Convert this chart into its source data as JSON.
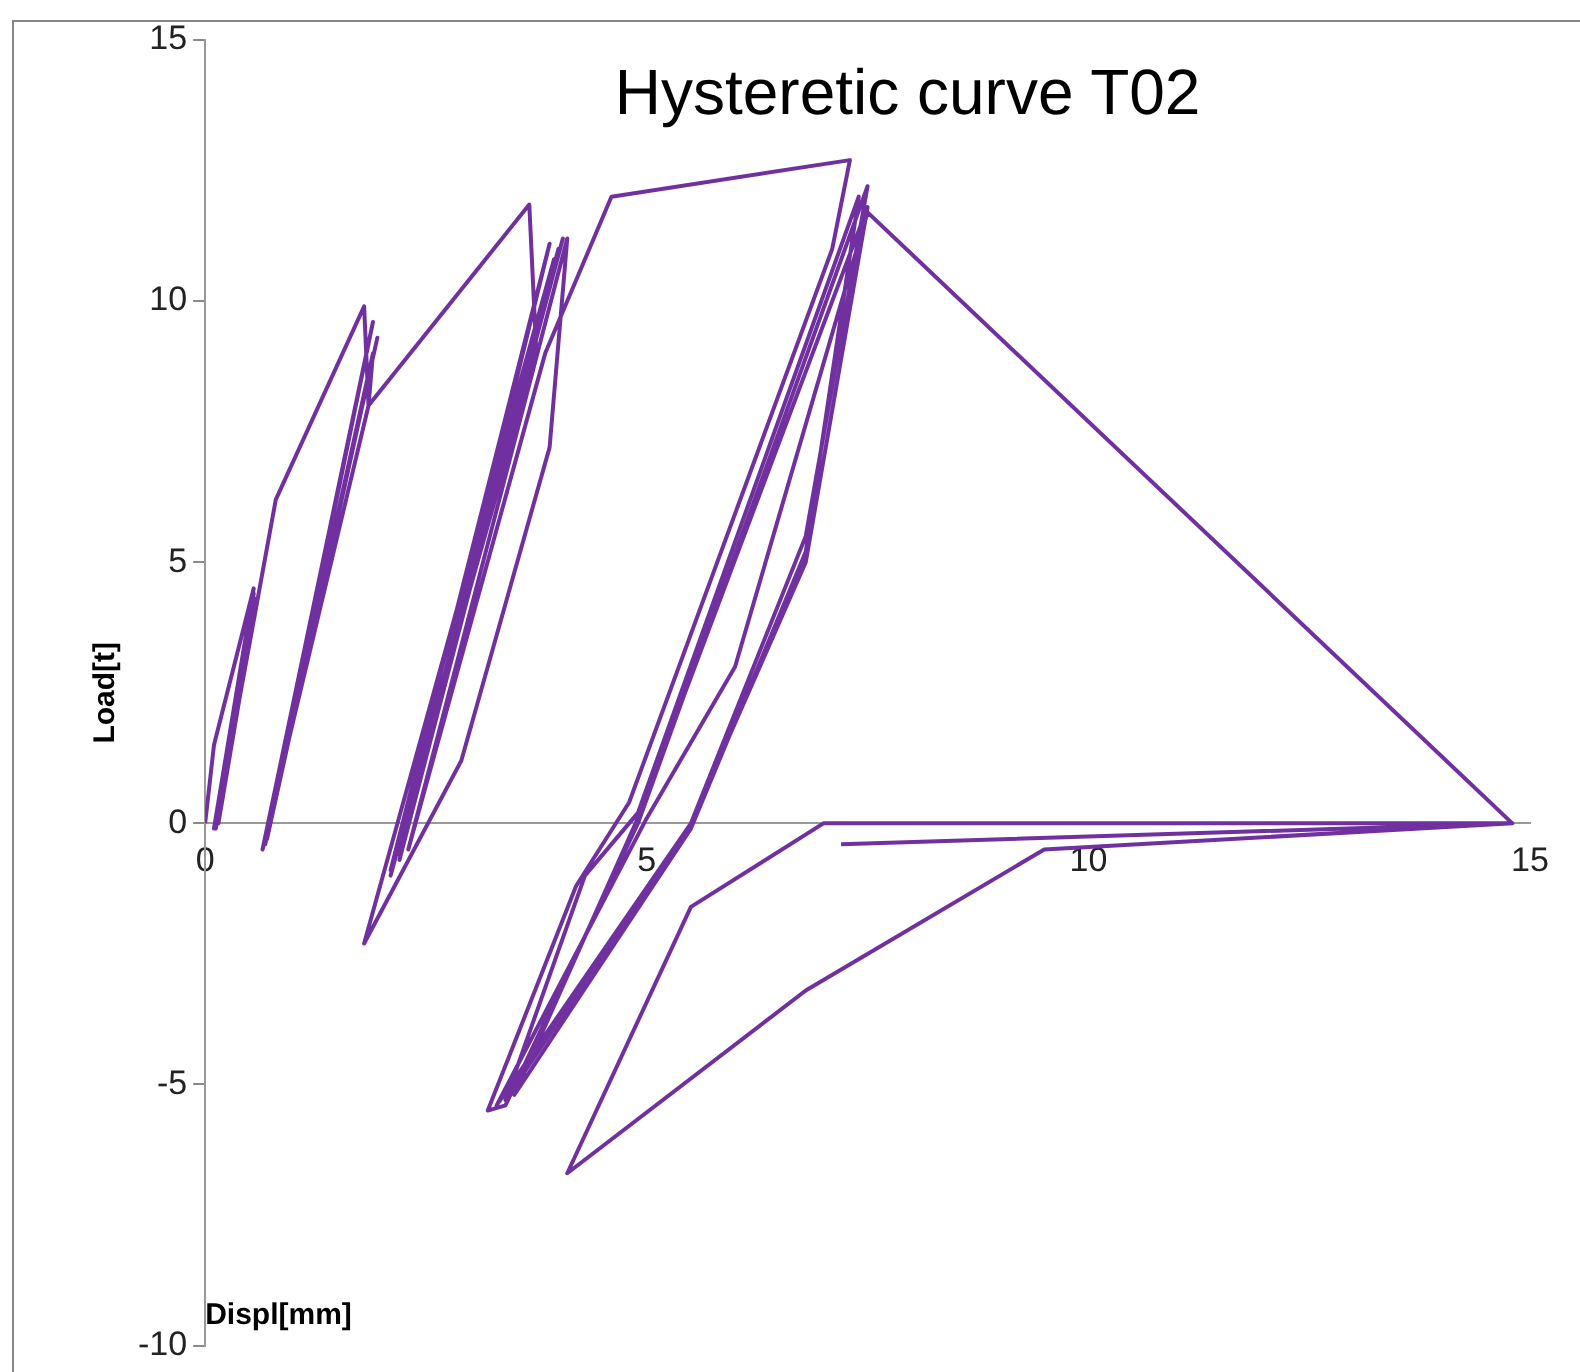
{
  "chart_data": {
    "type": "line",
    "title": "Hysteretic curve T02",
    "xlabel": "Displ[mm]",
    "ylabel": "Load[t]",
    "x": [
      0,
      0.1,
      0.55,
      0.1,
      0.55,
      0.15,
      0.58,
      0.12,
      0.8,
      1.8,
      1.85,
      0.65,
      1.9,
      0.7,
      1.95,
      0.68,
      1.9,
      1.85,
      3.67,
      3.75,
      2.1,
      3.9,
      2.2,
      4.0,
      2.1,
      4.05,
      2.2,
      3.95,
      1.8,
      2.9,
      3.9,
      4.1,
      2.3,
      3.85,
      4.6,
      7.3,
      7.1,
      4.8,
      4.2,
      3.2,
      3.4,
      4.9,
      7.5,
      6.8,
      5.5,
      3.4,
      4.3,
      4.9,
      7.4,
      6.8,
      5.5,
      3.5,
      4.9,
      7.5,
      6.8,
      5.5,
      3.3,
      5.0,
      6.0,
      7.5,
      14.8,
      7.0,
      5.5,
      4.1,
      6.8,
      9.5,
      14.8,
      7.2
    ],
    "series": [
      {
        "color": "#7030a0",
        "values": [
          0,
          1.5,
          4.5,
          -0.1,
          4.4,
          0,
          4.3,
          -0.1,
          6.2,
          9.9,
          8,
          -0.5,
          9.6,
          -0.3,
          9.3,
          -0.4,
          9.0,
          8,
          11.85,
          9.0,
          -0.9,
          11.1,
          -0.7,
          11.0,
          -1.0,
          11.2,
          -0.6,
          10.8,
          -2.3,
          1.2,
          7.2,
          11.2,
          -0.5,
          9.0,
          12,
          12.7,
          11,
          0.4,
          -1.2,
          -5.5,
          -5.4,
          0,
          12.2,
          5.5,
          0,
          -5.3,
          -1,
          0.2,
          12.0,
          5.2,
          -0.1,
          -5.2,
          0.1,
          11.8,
          5.0,
          0,
          -5.4,
          0.1,
          3,
          11.7,
          0,
          0,
          -1.6,
          -6.7,
          -3.2,
          -0.5,
          0,
          -0.4
        ]
      }
    ],
    "xlim": [
      0,
      15
    ],
    "xticks": [
      0,
      5,
      10,
      15
    ],
    "ylim": [
      -10,
      15
    ],
    "yticks": [
      -10,
      -5,
      0,
      5,
      10,
      15
    ],
    "grid": false,
    "legend": false,
    "marker": "none",
    "line_style": "solid"
  }
}
